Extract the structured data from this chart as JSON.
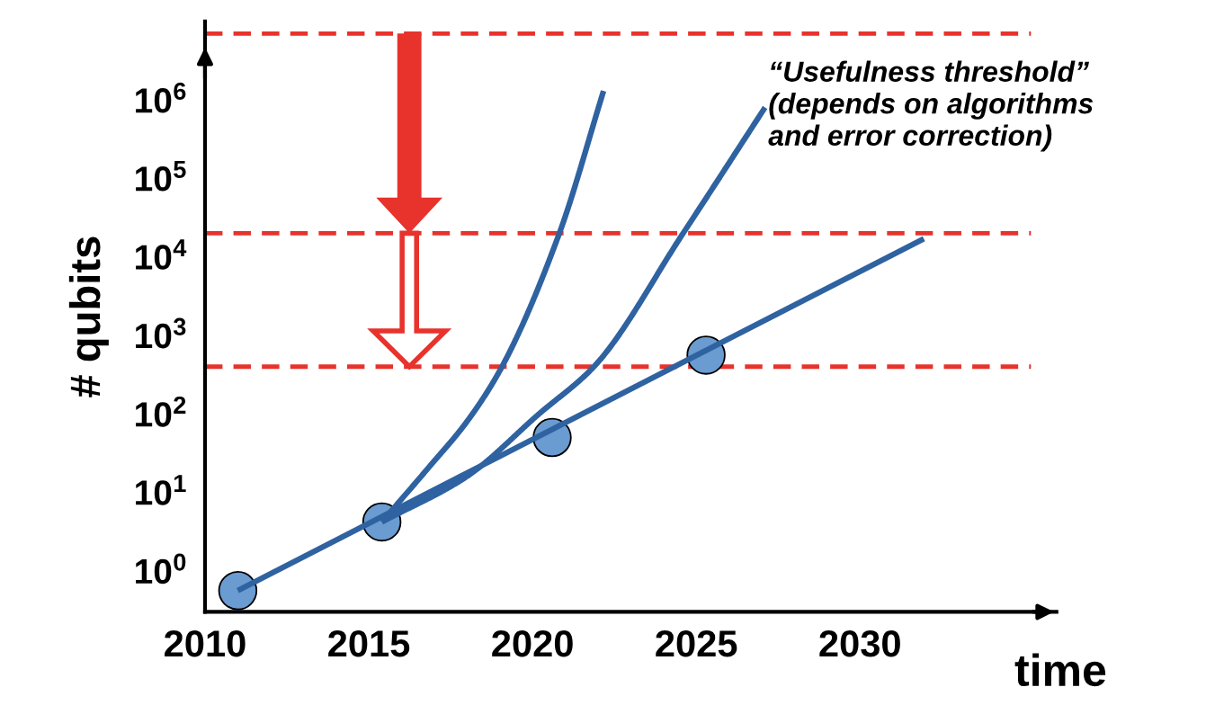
{
  "chart_data": {
    "type": "line",
    "xlabel": "time",
    "ylabel": "# qubits",
    "log": "y",
    "xlim": [
      2010,
      2036
    ],
    "ylim": [
      0.3,
      10000000
    ],
    "xticks": [
      2010,
      2015,
      2020,
      2025,
      2030
    ],
    "yticks": [
      {
        "value": 1,
        "label": "10$^{0}$"
      },
      {
        "value": 10,
        "label": "10$^{1}$"
      },
      {
        "value": 100,
        "label": "10$^{2}$"
      },
      {
        "value": 1000,
        "label": "10$^{3}$"
      },
      {
        "value": 10000,
        "label": "10$^{4}$"
      },
      {
        "value": 100000,
        "label": "10$^{5}$"
      },
      {
        "value": 1000000,
        "label": "10$^{6}$"
      }
    ],
    "grid": false,
    "legend": false,
    "series": [
      {
        "type": "line",
        "color": "#2f62a0",
        "x": [
          2011,
          2031.95
        ],
        "values": [
          0.56,
          17000
        ]
      },
      {
        "type": "line",
        "color": "#2f62a0",
        "x": [
          2015.4,
          2018,
          2020.2,
          2021.9,
          2024.6,
          2027.1
        ],
        "values": [
          4.2,
          16,
          100,
          410,
          20000,
          800000
        ]
      },
      {
        "type": "line",
        "color": "#2f62a0",
        "x": [
          2015.4,
          2016.84,
          2018,
          2019.04,
          2020.82,
          2022.17
        ],
        "values": [
          4.2,
          21,
          80,
          380,
          20000,
          1300000
        ]
      },
      {
        "type": "scatter",
        "color": "#6a9bd1",
        "marker": "circle",
        "x": [
          2011,
          2015.4,
          2020.6,
          2025.3
        ],
        "values": [
          0.56,
          4.2,
          50,
          560
        ]
      }
    ],
    "ref_lines": [
      {
        "axis": "y",
        "value": 7000000,
        "color": "#e8322c",
        "line_style": "dashed"
      },
      {
        "axis": "y",
        "value": 20000,
        "color": "#e8322c",
        "line_style": "dashed"
      },
      {
        "axis": "y",
        "value": 400,
        "color": "#e8322c",
        "line_style": "dashed"
      }
    ],
    "annotations": [
      "“Usefulness threshold”\n(depends on algorithms\nand error correction)"
    ]
  }
}
